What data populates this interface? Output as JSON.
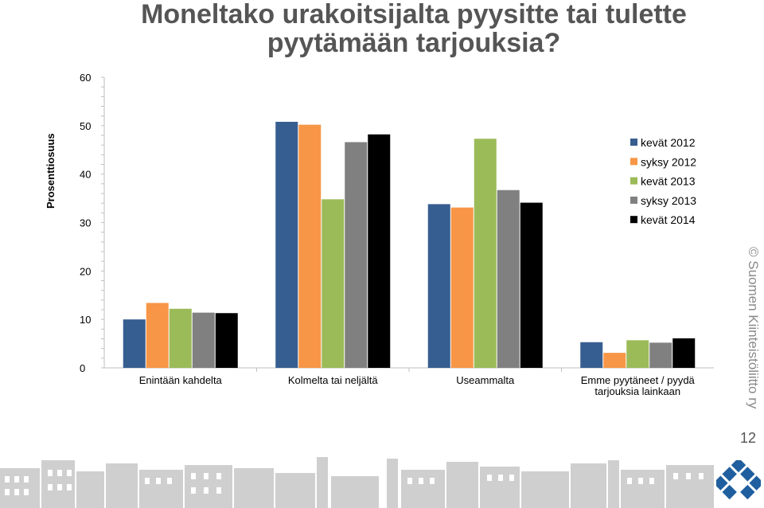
{
  "slide": {
    "title_line1": "Moneltako urakoitsijalta pyysitte tai tulette",
    "title_line2": "pyytämään tarjouksia?",
    "copyright": "© Suomen Kiinteistöliitto ry",
    "page_number": "12"
  },
  "chart_data": {
    "type": "bar",
    "title": "",
    "xlabel": "",
    "ylabel": "Prosenttiosuus",
    "ylim": [
      0,
      60
    ],
    "yticks": [
      0,
      10,
      20,
      30,
      40,
      50,
      60
    ],
    "grid": false,
    "legend_position": "right",
    "categories": [
      [
        "Enintään kahdelta"
      ],
      [
        "Kolmelta tai neljältä"
      ],
      [
        "Useammalta"
      ],
      [
        "Emme pyytäneet / pyydä",
        "tarjouksia lainkaan"
      ]
    ],
    "series": [
      {
        "name": "kevät 2012",
        "color": "#375e90",
        "values": [
          10,
          50.8,
          33.8,
          5.3
        ]
      },
      {
        "name": "syksy 2012",
        "color": "#f79646",
        "values": [
          13.4,
          50.2,
          33.1,
          3.1
        ]
      },
      {
        "name": "kevät 2013",
        "color": "#9bbb59",
        "values": [
          12.2,
          34.8,
          47.3,
          5.7
        ]
      },
      {
        "name": "syksy 2013",
        "color": "#808080",
        "values": [
          11.4,
          46.6,
          36.7,
          5.2
        ]
      },
      {
        "name": "kevät 2014",
        "color": "#000000",
        "values": [
          11.3,
          48.2,
          34.1,
          6.1
        ]
      }
    ]
  },
  "colors": {
    "title": "#555555",
    "axis": "#bfbfbf",
    "logo": "#1f5f9f"
  }
}
